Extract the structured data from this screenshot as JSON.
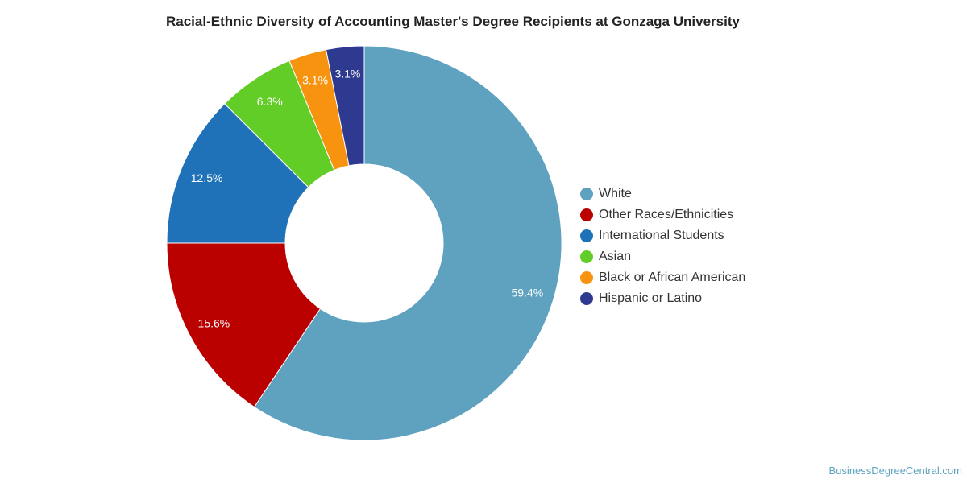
{
  "chart_data": {
    "type": "pie",
    "donut": true,
    "title": "Racial-Ethnic Diversity of Accounting Master's Degree Recipients at Gonzaga University",
    "legend_position": "right",
    "series": [
      {
        "name": "White",
        "value": 59.4,
        "label": "59.4%",
        "color": "#5ea2c0"
      },
      {
        "name": "Other Races/Ethnicities",
        "value": 15.6,
        "label": "15.6%",
        "color": "#bb0000"
      },
      {
        "name": "International Students",
        "value": 12.5,
        "label": "12.5%",
        "color": "#1f72b8"
      },
      {
        "name": "Asian",
        "value": 6.3,
        "label": "6.3%",
        "color": "#62cd26"
      },
      {
        "name": "Black or African American",
        "value": 3.1,
        "label": "3.1%",
        "color": "#f8930f"
      },
      {
        "name": "Hispanic or Latino",
        "value": 3.1,
        "label": "3.1%",
        "color": "#2d3a8f"
      }
    ]
  },
  "credit": "BusinessDegreeCentral.com"
}
